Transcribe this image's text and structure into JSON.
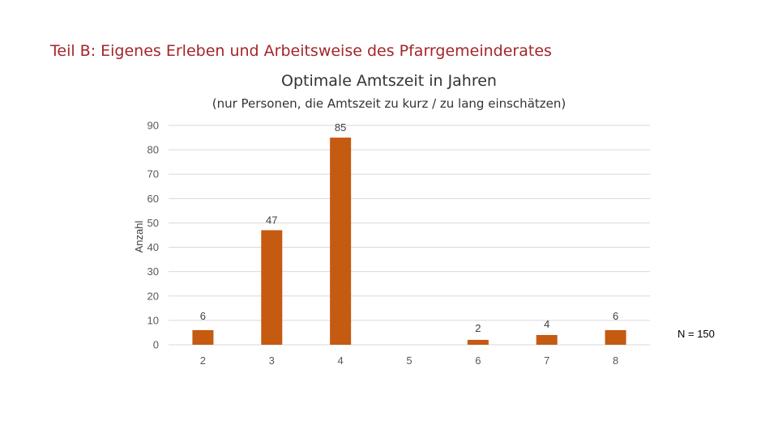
{
  "slide": {
    "heading": "Teil B: Eigenes Erleben und Arbeitsweise des Pfarrgemeinderates",
    "sample_note": "N = 150"
  },
  "chart_data": {
    "type": "bar",
    "title": "Optimale Amtszeit in Jahren",
    "subtitle": "(nur Personen, die Amtszeit zu kurz / zu lang einschätzen)",
    "xlabel": "",
    "ylabel": "Anzahl",
    "categories": [
      "2",
      "3",
      "4",
      "5",
      "6",
      "7",
      "8"
    ],
    "values": [
      6,
      47,
      85,
      null,
      2,
      4,
      6
    ],
    "data_labels": [
      "6",
      "47",
      "85",
      "",
      "2",
      "4",
      "6"
    ],
    "ylim": [
      0,
      90
    ],
    "yticks": [
      0,
      10,
      20,
      30,
      40,
      50,
      60,
      70,
      80,
      90
    ],
    "grid": true,
    "bar_color": "#c55a11",
    "grid_color": "#d9d9d9"
  }
}
